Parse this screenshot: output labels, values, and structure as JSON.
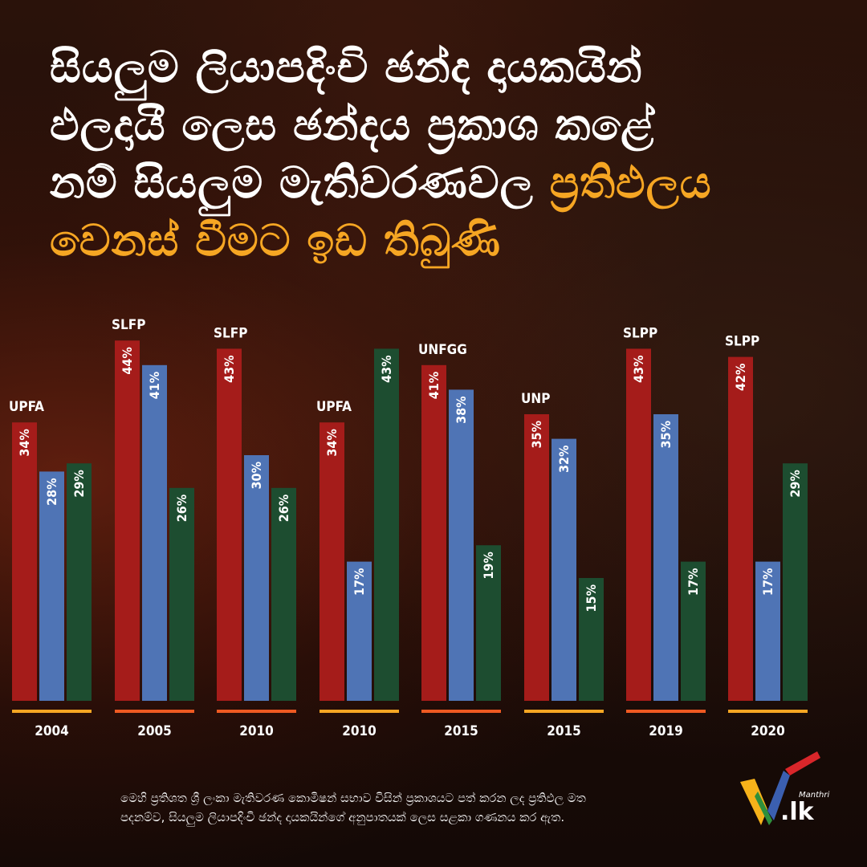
{
  "headline": {
    "line1": "සියලුම ලියාපදිංචි ඡන්ද දායකයින්",
    "line2": "ඵලදායී ලෙස ඡන්දය ප්‍රකාශ කළේ",
    "line3_white": "නම් සියලුම මැතිවරණවල ",
    "line3_highlight": "ප්‍රතිඵලය",
    "line4_highlight": "වෙනස් වීමට ඉඩ තිබුණි"
  },
  "colors": {
    "red_bar": "#a51c1a",
    "blue_bar": "#4f74b5",
    "green_bar": "#1d4d30",
    "underline_yellow": "#f6a623",
    "underline_orange": "#ef5a22",
    "highlight": "#f6a623"
  },
  "chart_data": {
    "type": "bar",
    "ylim": [
      0,
      50
    ],
    "groups": [
      {
        "year": "2004",
        "winner": "UPFA",
        "values": [
          34,
          28,
          29
        ],
        "underline": "yellow"
      },
      {
        "year": "2005",
        "winner": "SLFP",
        "values": [
          44,
          41,
          26
        ],
        "underline": "orange"
      },
      {
        "year": "2010",
        "winner": "SLFP",
        "values": [
          43,
          30,
          26
        ],
        "underline": "orange"
      },
      {
        "year": "2010",
        "winner": "UPFA",
        "values": [
          34,
          17,
          43
        ],
        "underline": "yellow"
      },
      {
        "year": "2015",
        "winner": "UNFGG",
        "values": [
          41,
          38,
          19
        ],
        "underline": "orange"
      },
      {
        "year": "2015",
        "winner": "UNP",
        "values": [
          35,
          32,
          15
        ],
        "underline": "yellow"
      },
      {
        "year": "2019",
        "winner": "SLPP",
        "values": [
          43,
          35,
          17
        ],
        "underline": "orange"
      },
      {
        "year": "2020",
        "winner": "SLPP",
        "values": [
          42,
          17,
          29
        ],
        "underline": "yellow"
      }
    ]
  },
  "footnote": {
    "line1": "මෙහි ප්‍රතිශත ශ්‍රී ලංකා මැතිවරණ කොමිෂන් සභාව විසින් ප්‍රකාශයට පත් කරන ලද ප්‍රතිඵල මත",
    "line2": "පදනම්ව, සියලුම ලියාපදිංචි ඡන්ද දායකයින්ගේ අනුපාතයක් ලෙස සළකා ගණනය කර ඇත."
  },
  "logo": {
    "small_text": "Manthri",
    "main_text": ".lk"
  }
}
